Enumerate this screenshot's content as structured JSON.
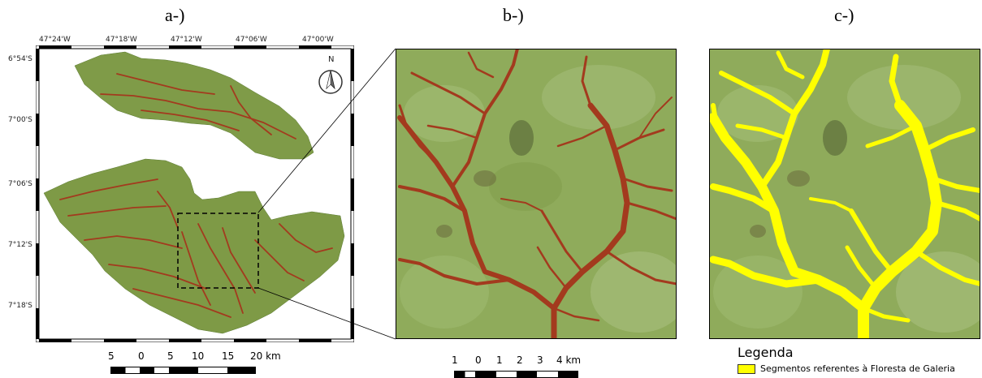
{
  "panels": {
    "a": {
      "label": "a-)"
    },
    "b": {
      "label": "b-)"
    },
    "c": {
      "label": "c-)"
    }
  },
  "map_a": {
    "lon_ticks": [
      "47°24'W",
      "47°18'W",
      "47°12'W",
      "47°06'W",
      "47°00'W"
    ],
    "lat_ticks": [
      "6°54'S",
      "7°00'S",
      "7°06'S",
      "7°12'S",
      "7°18'S"
    ],
    "north_label": "N",
    "scale_labels": [
      "5",
      "0",
      "5",
      "10",
      "15",
      "20 km"
    ]
  },
  "map_b": {
    "scale_labels": [
      "1",
      "0",
      "1",
      "2",
      "3",
      "4 km"
    ]
  },
  "legend": {
    "title": "Legenda",
    "item": "Segmentos referentes à Floresta de Galeria",
    "item_color": "#ffff00"
  },
  "colors": {
    "land": "#86a24e",
    "forest": "#a33a1e",
    "highlight": "#ffff00"
  }
}
